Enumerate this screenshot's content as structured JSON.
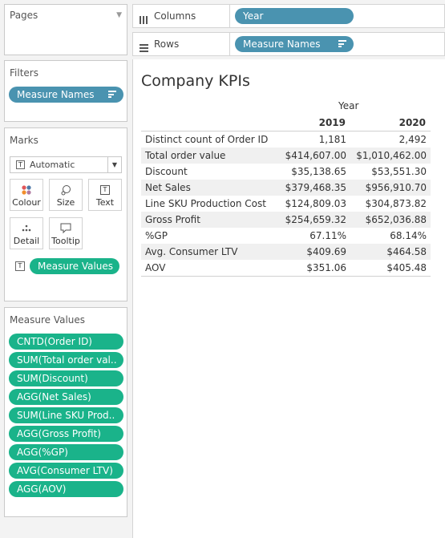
{
  "pages": {
    "title": "Pages"
  },
  "filters": {
    "title": "Filters",
    "pill": "Measure Names"
  },
  "marks": {
    "title": "Marks",
    "dropdown": "Automatic",
    "buttons": [
      "Colour",
      "Size",
      "Text",
      "Detail",
      "Tooltip"
    ],
    "pill": "Measure Values"
  },
  "measure_values": {
    "title": "Measure Values",
    "items": [
      "CNTD(Order ID)",
      "SUM(Total order val..",
      "SUM(Discount)",
      "AGG(Net Sales)",
      "SUM(Line SKU Prod..",
      "AGG(Gross Profit)",
      "AGG(%GP)",
      "AVG(Consumer LTV)",
      "AGG(AOV)"
    ]
  },
  "columns": {
    "label": "Columns",
    "pill": "Year"
  },
  "rows": {
    "label": "Rows",
    "pill": "Measure Names"
  },
  "view": {
    "title": "Company KPIs",
    "header_group": "Year",
    "col_headers": [
      "2019",
      "2020"
    ],
    "rows": [
      [
        "Distinct count of Order ID",
        "1,181",
        "2,492"
      ],
      [
        "Total order value",
        "$414,607.00",
        "$1,010,462.00"
      ],
      [
        "Discount",
        "$35,138.65",
        "$53,551.30"
      ],
      [
        "Net Sales",
        "$379,468.35",
        "$956,910.70"
      ],
      [
        "Line SKU Production Cost",
        "$124,809.03",
        "$304,873.82"
      ],
      [
        "Gross Profit",
        "$254,659.32",
        "$652,036.88"
      ],
      [
        "%GP",
        "67.11%",
        "68.14%"
      ],
      [
        "Avg. Consumer LTV",
        "$409.69",
        "$464.58"
      ],
      [
        "AOV",
        "$351.06",
        "$405.48"
      ]
    ]
  },
  "colors": {
    "blue_pill": "#4a93b0",
    "green_pill": "#1ab38a"
  }
}
